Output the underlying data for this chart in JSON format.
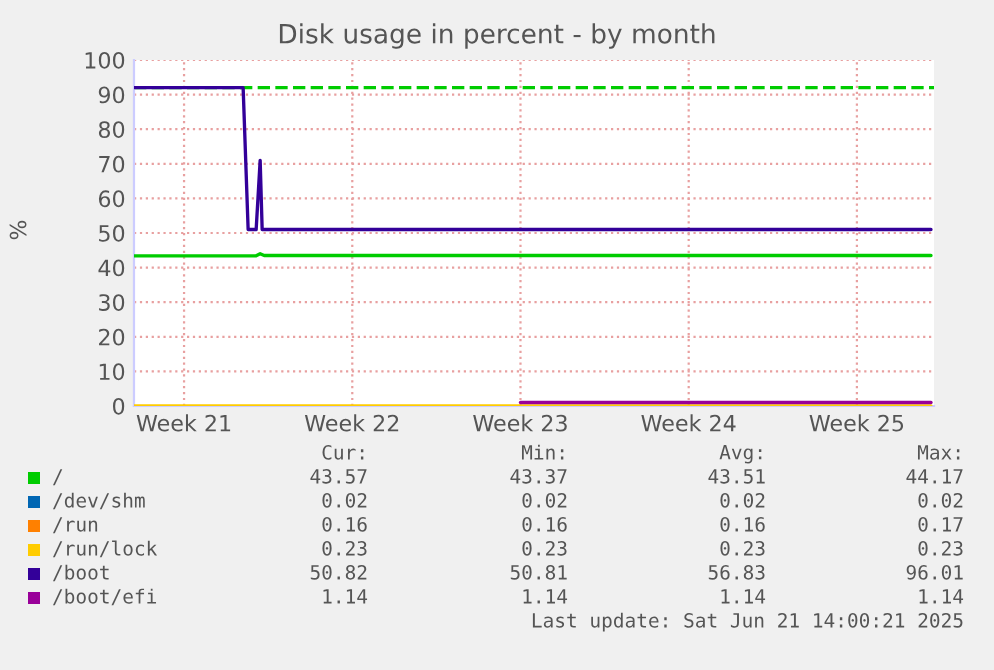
{
  "chart_data": {
    "type": "line",
    "title": "Disk usage in percent - by month",
    "ylabel": "%",
    "xlim": [
      "2025-05-20T10:00",
      "2025-06-22T17:00"
    ],
    "xticks": [
      {
        "value": "2025-05-22T12:00",
        "label": "Week 21"
      },
      {
        "value": "2025-05-29T12:00",
        "label": "Week 22"
      },
      {
        "value": "2025-06-05T12:00",
        "label": "Week 23"
      },
      {
        "value": "2025-06-12T12:00",
        "label": "Week 24"
      },
      {
        "value": "2025-06-19T12:00",
        "label": "Week 25"
      }
    ],
    "ylim": [
      0,
      100
    ],
    "yticks": [
      0,
      10,
      20,
      30,
      40,
      50,
      60,
      70,
      80,
      90,
      100
    ],
    "grid": true,
    "legend": "bottom left",
    "marker": "none",
    "line_style": "solid",
    "series": [
      {
        "name": "/",
        "color": "#00cc00",
        "x": [
          "2025-05-20T10:00",
          "2025-05-25T12:00",
          "2025-05-25T16:00",
          "2025-05-25T20:00",
          "2025-06-22T14:00"
        ],
        "values": [
          43.4,
          43.4,
          44.0,
          43.5,
          43.5
        ]
      },
      {
        "name": "/dev/shm",
        "color": "#0066b3"
      },
      {
        "name": "/run",
        "color": "#ff8000"
      },
      {
        "name": "/run/lock",
        "color": "#ffcc00",
        "x": [
          "2025-05-20T10:00",
          "2025-06-22T14:00"
        ],
        "values": [
          0,
          0
        ]
      },
      {
        "name": "/boot",
        "color": "#330099",
        "x": [
          "2025-05-20T10:00",
          "2025-05-24T23:00",
          "2025-05-25T04:00",
          "2025-05-25T12:00",
          "2025-05-25T16:00",
          "2025-05-25T18:00",
          "2025-06-22T14:00"
        ],
        "values": [
          92,
          92,
          51,
          51,
          71,
          51,
          51
        ]
      },
      {
        "name": "/boot/efi",
        "color": "#990099",
        "x": [
          "2025-06-05T12:00",
          "2025-06-22T14:00"
        ],
        "values": [
          1,
          1
        ]
      }
    ],
    "ref_lines": [
      {
        "axis": "y",
        "value": 92,
        "color": "#00cc00",
        "line_style": "dashed"
      }
    ],
    "annotations": [
      "Cur:",
      "Min:",
      "Avg:",
      "Max:",
      "43.57",
      "43.37",
      "43.51",
      "44.17",
      "0.02",
      "0.02",
      "0.02",
      "0.02",
      "0.16",
      "0.16",
      "0.16",
      "0.17",
      "0.23",
      "0.23",
      "0.23",
      "0.23",
      "50.82",
      "50.81",
      "56.83",
      "96.01",
      "1.14",
      "1.14",
      "1.14",
      "1.14",
      "Last update: Sat Jun 21 14:00:21 2025"
    ]
  }
}
